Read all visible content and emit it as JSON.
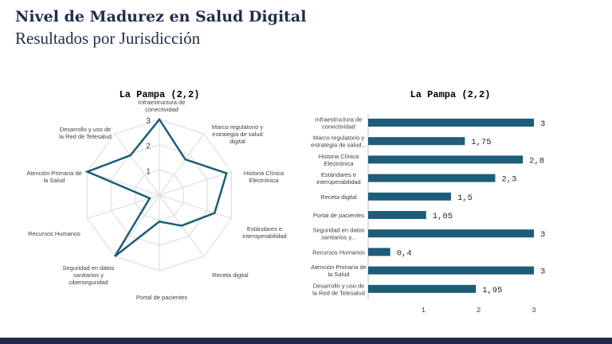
{
  "header": {
    "title": "Nivel de Madurez en Salud Digital",
    "subtitle": "Resultados por Jurisdicción"
  },
  "colors": {
    "series": "#1d5d79",
    "grid": "#d9d9d9",
    "text": "#404040",
    "navy": "#1f2d4d"
  },
  "chart_data": [
    {
      "type": "radar",
      "title": "La Pampa (2,2)",
      "rlim": [
        0,
        3
      ],
      "ticks": [
        "1",
        "2",
        "3"
      ],
      "categories": [
        "Infraestructura de conectividad",
        "Marco regulatorio y estrategia de salud digital",
        "Historia Clínica Electrónica",
        "Estándares e interoperabilidad",
        "Receta digital",
        "Portal de pacientes",
        "Seguridad en datos sanitarios y ciberseguridad",
        "Recursos Humanos",
        "Atención Primaria de la Salud",
        "Desarrollo y uso de la Red de Telesalud"
      ],
      "values": [
        3,
        1.75,
        2.8,
        2.3,
        1.5,
        1.05,
        3,
        0.4,
        3,
        1.95
      ]
    },
    {
      "type": "bar",
      "orientation": "horizontal",
      "title": "La Pampa (2,2)",
      "categories": [
        "Infraestructura de conectividad",
        "Marco regulatorio y estrategia de salud...",
        "Historia Clínica Electrónica",
        "Estándares e interoperabilidad",
        "Receta digital",
        "Portal de pacientes",
        "Seguridad en datos sanitarios y...",
        "Recursos Humanos",
        "Atención Primaria de la Salud",
        "Desarrollo y uso de la Red de Telesalud"
      ],
      "values": [
        3,
        1.75,
        2.8,
        2.3,
        1.5,
        1.05,
        3,
        0.4,
        3,
        1.95
      ],
      "data_labels": [
        "3",
        "1,75",
        "2,8",
        "2,3",
        "1,5",
        "1,05",
        "3",
        "0,4",
        "3",
        "1,95"
      ],
      "xticks": [
        "1",
        "2",
        "3"
      ],
      "xlim": [
        0,
        3
      ]
    }
  ]
}
